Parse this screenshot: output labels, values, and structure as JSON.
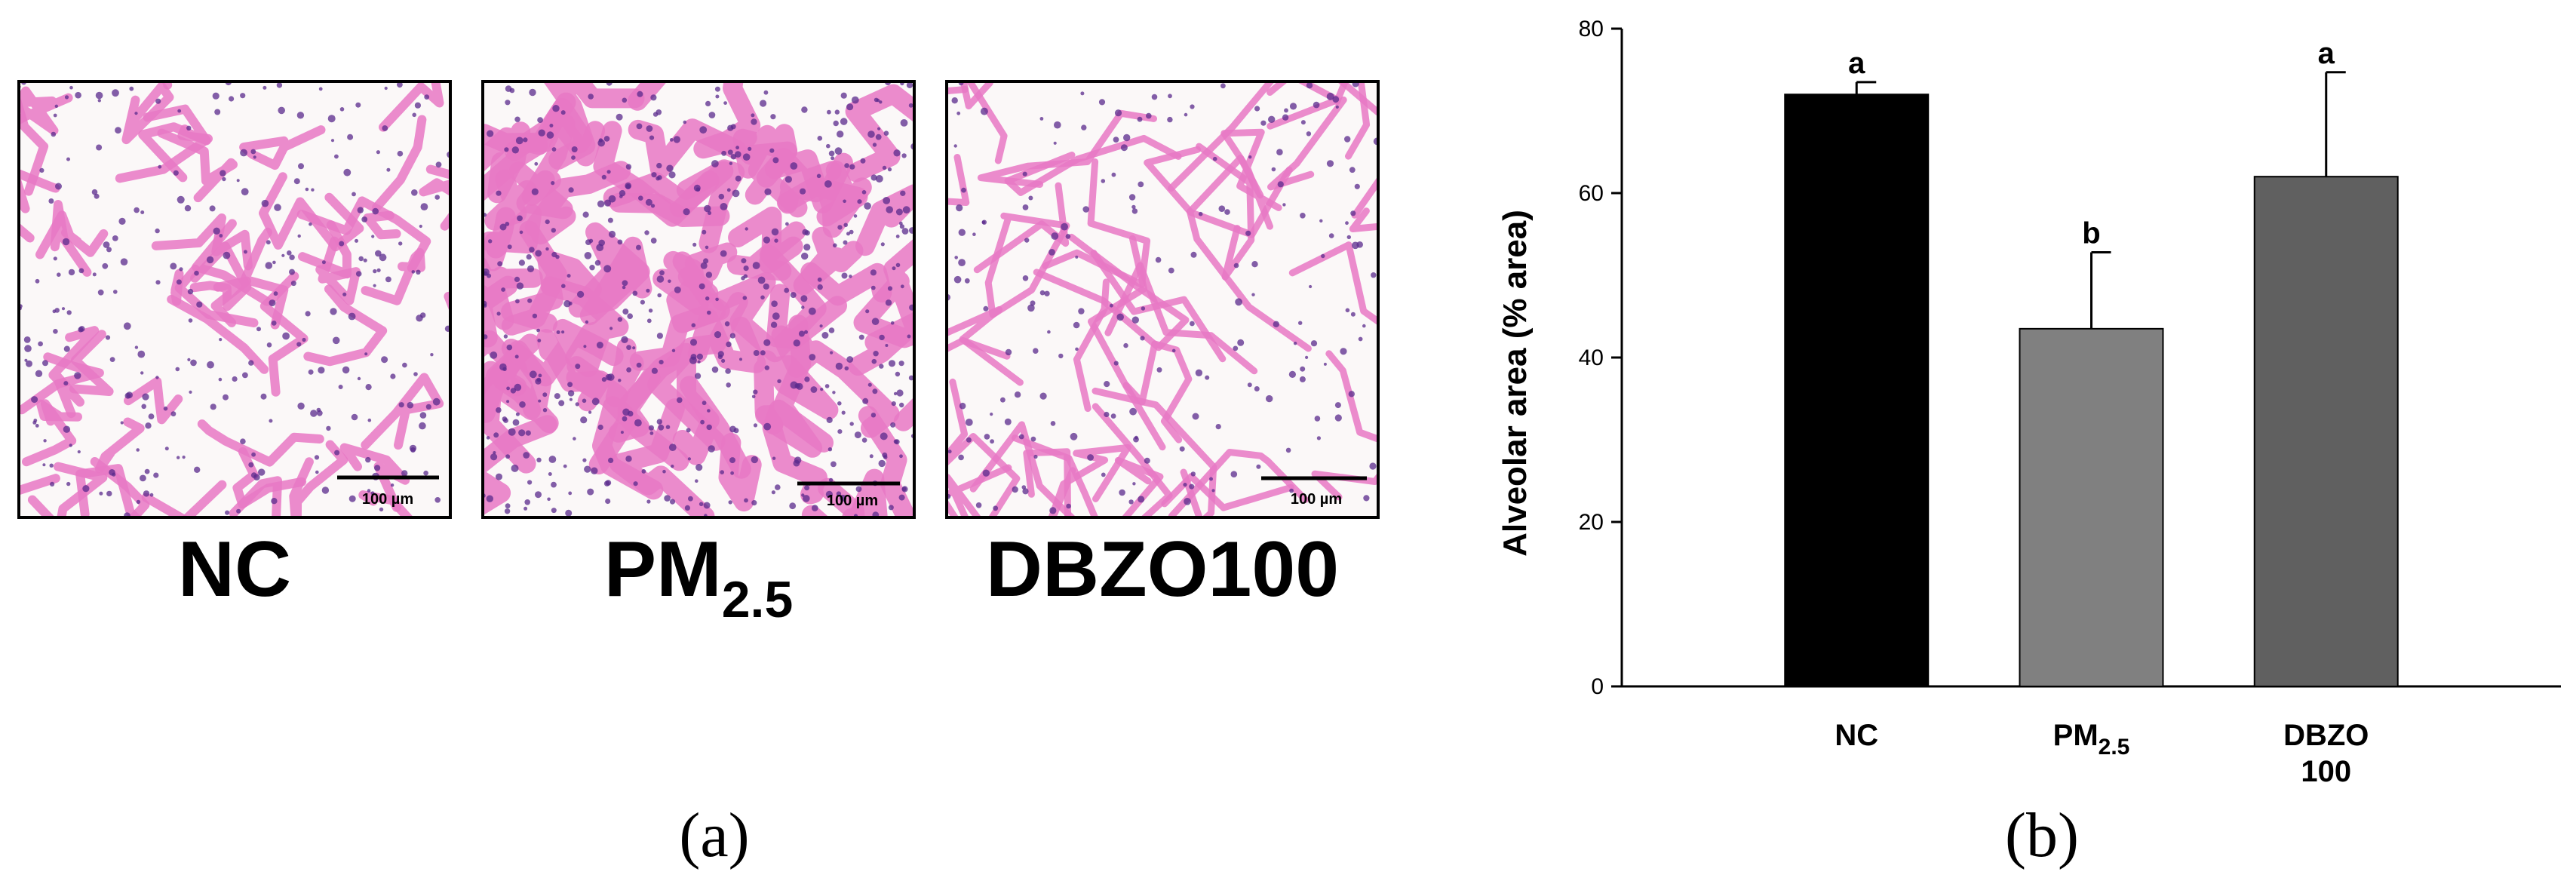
{
  "panel_a": {
    "letter": "(a)",
    "images": [
      {
        "label": "NC",
        "label_sub": "",
        "scale_bar": "100 µm",
        "stain_style": "sparse"
      },
      {
        "label": "PM",
        "label_sub": "2.5",
        "scale_bar": "100 µm",
        "stain_style": "dense"
      },
      {
        "label": "DBZO100",
        "label_sub": "",
        "scale_bar": "100 µm",
        "stain_style": "large"
      }
    ],
    "colors": {
      "background": "#fbf8f8",
      "tissue": "#e878c4",
      "nuclei": "#5a2a8c"
    }
  },
  "panel_b": {
    "letter": "(b)"
  },
  "chart_data": {
    "type": "bar",
    "title": "",
    "xlabel": "",
    "ylabel": "Alveolar area (% area)",
    "ylim": [
      0,
      80
    ],
    "yticks": [
      0,
      20,
      40,
      60,
      80
    ],
    "grid": false,
    "categories": [
      {
        "main": "NC",
        "sub": "",
        "line2": ""
      },
      {
        "main": "PM",
        "sub": "2.5",
        "line2": ""
      },
      {
        "main": "DBZO",
        "sub": "",
        "line2": "100"
      }
    ],
    "values": [
      72,
      43.5,
      62
    ],
    "errors": [
      1.5,
      9.3,
      12.7
    ],
    "significance": [
      "a",
      "b",
      "a"
    ],
    "colors": [
      "#000000",
      "#808080",
      "#606060"
    ]
  }
}
